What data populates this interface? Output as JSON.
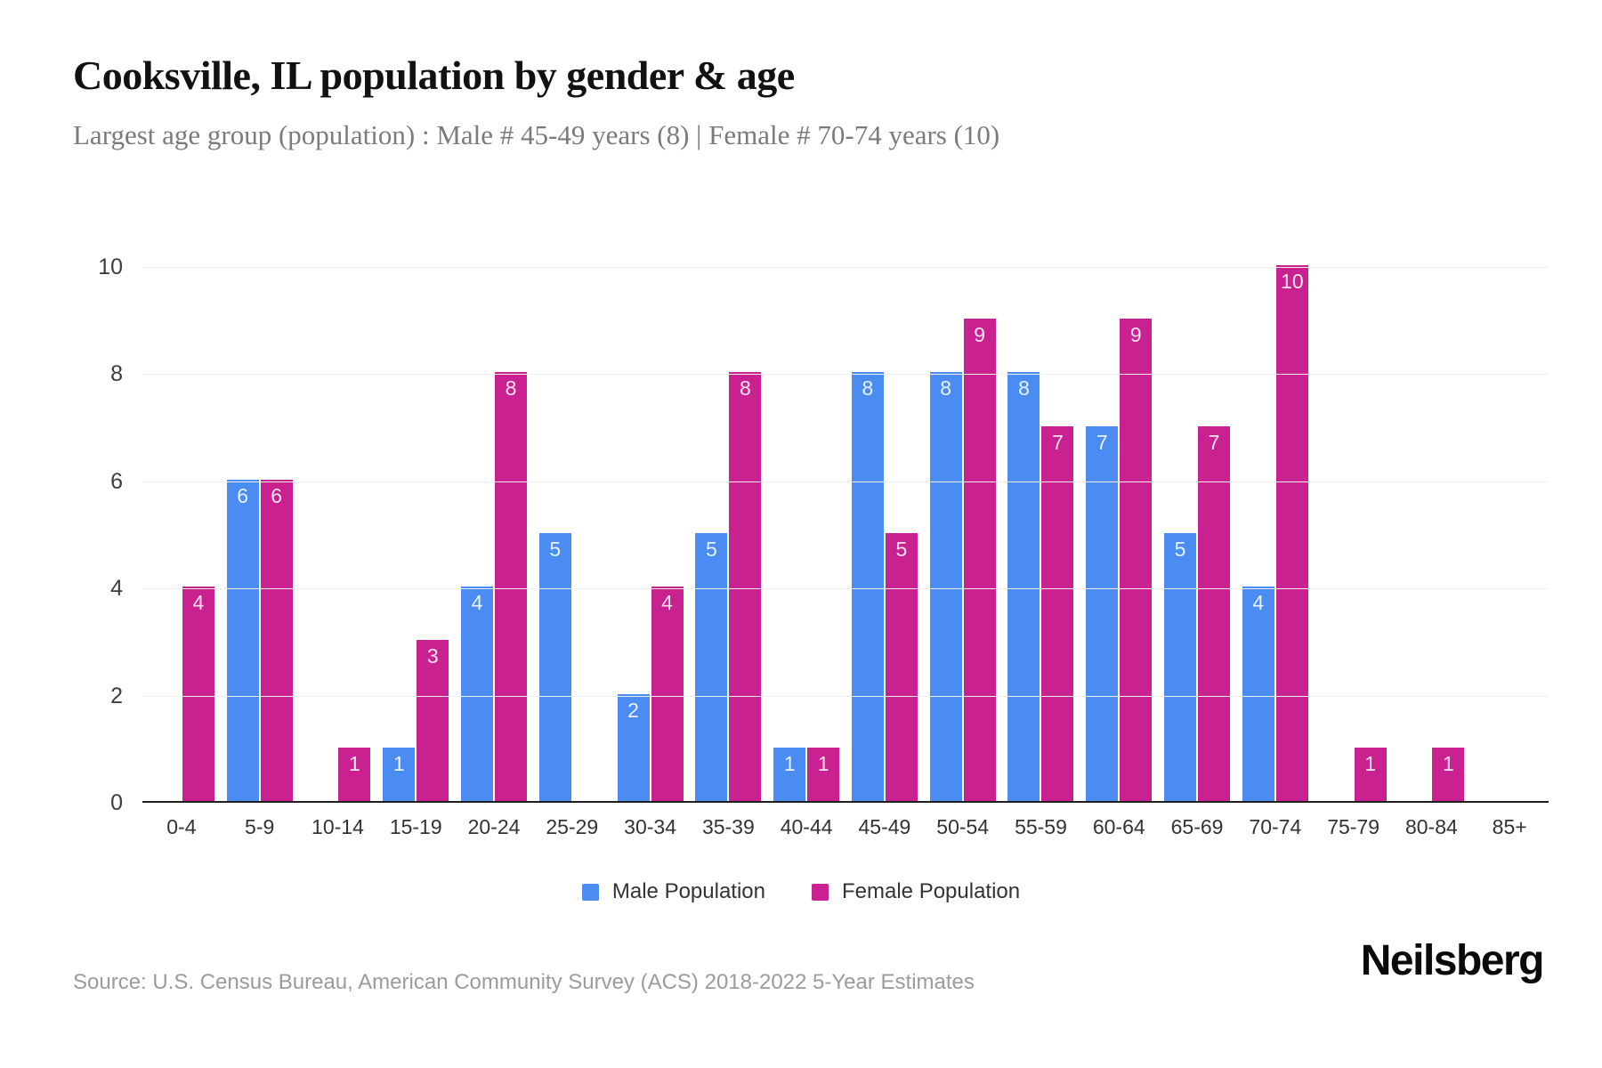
{
  "header": {
    "title": "Cooksville, IL population by gender & age",
    "subtitle": "Largest age group (population) : Male # 45-49 years (8) | Female # 70-74 years (10)"
  },
  "chart_data": {
    "type": "bar",
    "title": "Cooksville, IL population by gender & age",
    "categories": [
      "0-4",
      "5-9",
      "10-14",
      "15-19",
      "20-24",
      "25-29",
      "30-34",
      "35-39",
      "40-44",
      "45-49",
      "50-54",
      "55-59",
      "60-64",
      "65-69",
      "70-74",
      "75-79",
      "80-84",
      "85+"
    ],
    "series": [
      {
        "name": "Male Population",
        "color": "#4a8cf1",
        "values": [
          0,
          6,
          0,
          1,
          4,
          5,
          2,
          5,
          1,
          8,
          8,
          8,
          7,
          5,
          4,
          0,
          0,
          0
        ]
      },
      {
        "name": "Female Population",
        "color": "#c9218f",
        "values": [
          4,
          6,
          1,
          3,
          8,
          0,
          4,
          8,
          1,
          5,
          9,
          7,
          9,
          7,
          10,
          1,
          1,
          0
        ]
      }
    ],
    "xlabel": "",
    "ylabel": "",
    "ylim": [
      0,
      10
    ],
    "yticks": [
      0,
      2,
      4,
      6,
      8,
      10
    ],
    "grid": true,
    "legend_position": "bottom",
    "bar_value_labels": true
  },
  "colors": {
    "male": "#4a8cf1",
    "female": "#c9218f",
    "grid": "#f0f0f0",
    "axis": "#1f1f1f"
  },
  "footer": {
    "source": "Source: U.S. Census Bureau, American Community Survey (ACS) 2018-2022 5-Year Estimates",
    "logo": "Neilsberg"
  }
}
